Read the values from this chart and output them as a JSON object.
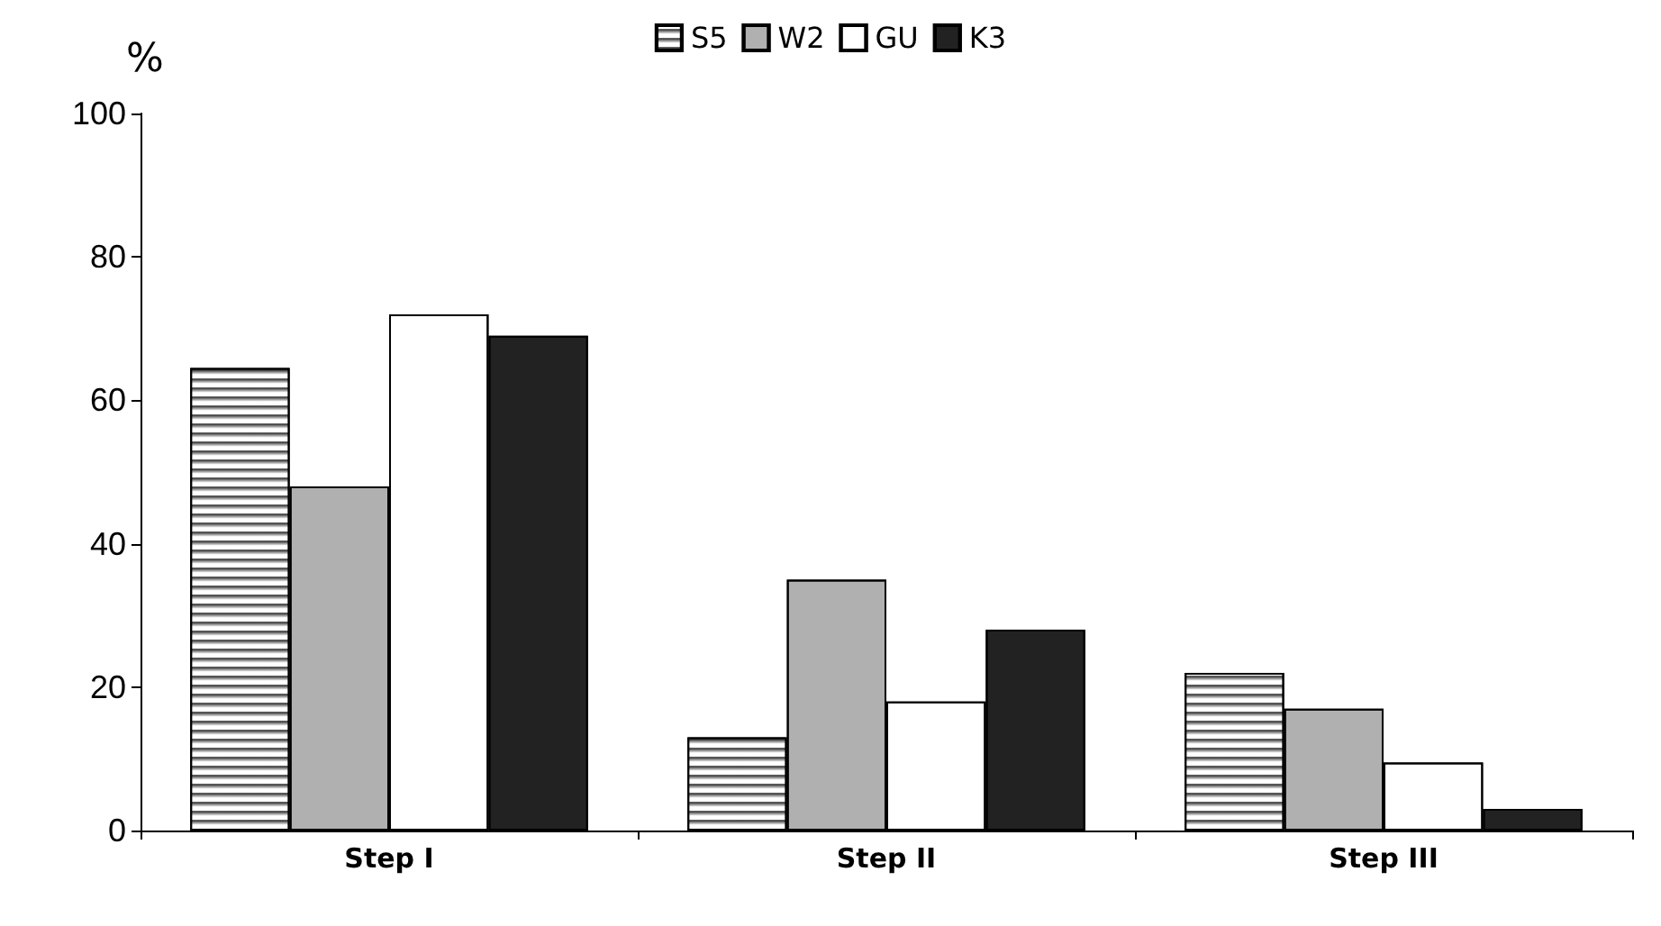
{
  "chart_data": {
    "type": "bar",
    "ylabel": "%",
    "categories": [
      "Step I",
      "Step II",
      "Step III"
    ],
    "series": [
      {
        "name": "S5",
        "color": "#ffffff",
        "values": [
          64.5,
          13,
          22
        ]
      },
      {
        "name": "W2",
        "color": "#b0b0b0",
        "values": [
          48,
          35,
          17
        ]
      },
      {
        "name": "GU",
        "color": "#ffffff",
        "values": [
          72,
          18,
          9.5
        ]
      },
      {
        "name": "K3",
        "color": "#222222",
        "values": [
          69,
          28,
          3
        ]
      }
    ],
    "ylim": [
      0,
      100
    ],
    "yticks": [
      0,
      20,
      40,
      60,
      80,
      100
    ],
    "grid": false,
    "legend": "top"
  }
}
